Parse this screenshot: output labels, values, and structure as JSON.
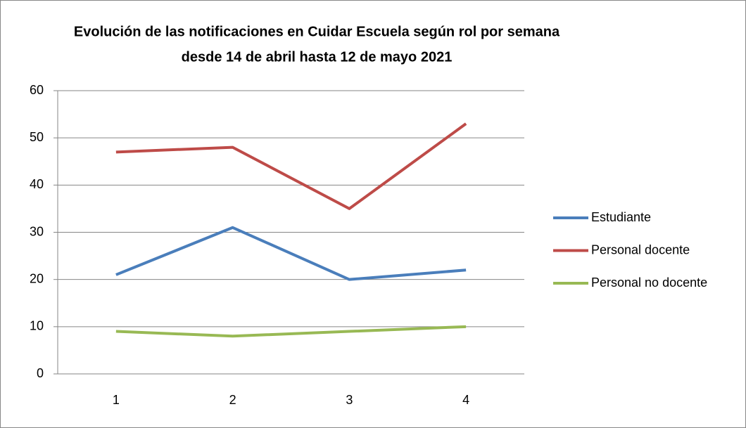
{
  "chart_data": {
    "type": "line",
    "title": [
      "Evolución de las notificaciones en Cuidar Escuela según rol por semana",
      "desde 14 de abril hasta 12 de mayo 2021"
    ],
    "categories": [
      "1",
      "2",
      "3",
      "4"
    ],
    "series": [
      {
        "name": "Estudiante",
        "color": "#4a7ebb",
        "values": [
          21,
          31,
          20,
          22
        ]
      },
      {
        "name": "Personal docente",
        "color": "#be4b48",
        "values": [
          47,
          48,
          35,
          53
        ]
      },
      {
        "name": "Personal no docente",
        "color": "#98b954",
        "values": [
          9,
          8,
          9,
          10
        ]
      }
    ],
    "ylim": [
      0,
      60
    ],
    "yticks": [
      0,
      10,
      20,
      30,
      40,
      50,
      60
    ],
    "grid": true,
    "legend": "right"
  }
}
